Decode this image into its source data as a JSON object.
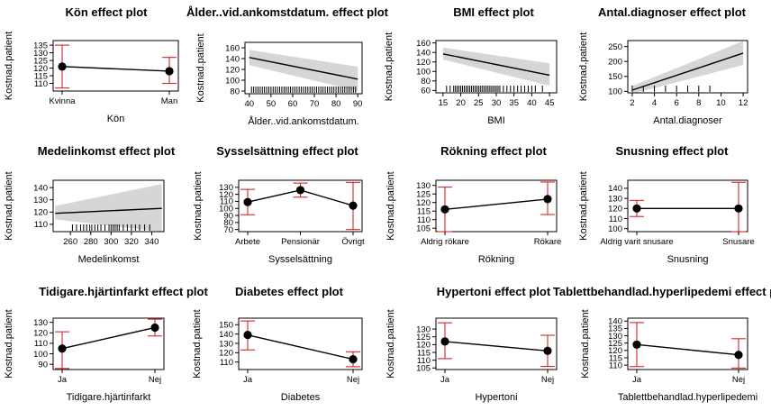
{
  "chart_data": [
    {
      "type": "point",
      "title": "Kön effect plot",
      "xlabel": "Kön",
      "ylabel": "Kostnad.patient",
      "categories": [
        "Kvinna",
        "Man"
      ],
      "values": [
        121,
        118
      ],
      "lower": [
        107,
        110
      ],
      "upper": [
        135,
        127
      ],
      "ylim": [
        105,
        138
      ],
      "yticks": [
        110,
        115,
        120,
        125,
        130,
        135
      ]
    },
    {
      "type": "line",
      "title": "Ålder..vid.ankomstdatum. effect plot",
      "xlabel": "Ålder..vid.ankomstdatum.",
      "ylabel": "Kostnad.patient",
      "x": [
        40,
        90
      ],
      "values": [
        142,
        102
      ],
      "lower": [
        128,
        80
      ],
      "upper": [
        156,
        125
      ],
      "xlim": [
        38,
        92
      ],
      "ylim": [
        75,
        170
      ],
      "xticks": [
        40,
        50,
        60,
        70,
        80,
        90
      ],
      "yticks": [
        80,
        100,
        120,
        140,
        160
      ],
      "rug": [
        41,
        42,
        43,
        44,
        45,
        46,
        47,
        48,
        49,
        50,
        51,
        52,
        53,
        54,
        55,
        56,
        57,
        58,
        59,
        60,
        61,
        62,
        63,
        64,
        65,
        66,
        67,
        68,
        69,
        70,
        71,
        72,
        73,
        74,
        75,
        76,
        77,
        78,
        79,
        80,
        81,
        82,
        83,
        84,
        85,
        86,
        87,
        88,
        89
      ]
    },
    {
      "type": "line",
      "title": "BMI effect plot",
      "xlabel": "BMI",
      "ylabel": "Kostnad.patient",
      "x": [
        15,
        45
      ],
      "values": [
        137,
        92
      ],
      "lower": [
        125,
        70
      ],
      "upper": [
        150,
        117
      ],
      "xlim": [
        13,
        47
      ],
      "ylim": [
        55,
        165
      ],
      "xticks": [
        15,
        20,
        25,
        30,
        35,
        40,
        45
      ],
      "yticks": [
        60,
        80,
        100,
        120,
        140,
        160
      ],
      "rug": [
        16,
        17,
        18,
        18.5,
        19,
        19.5,
        20,
        20.5,
        21,
        21.5,
        22,
        22.5,
        23,
        23.5,
        24,
        24.5,
        25,
        25.5,
        26,
        26.5,
        27,
        27.5,
        28,
        28.5,
        29,
        29.5,
        30,
        30.5,
        31,
        32,
        33,
        34,
        35,
        36,
        37,
        38,
        39,
        40,
        41,
        43
      ]
    },
    {
      "type": "line",
      "title": "Antal.diagnoser effect plot",
      "xlabel": "Antal.diagnoser",
      "ylabel": "Kostnad.patient",
      "x": [
        2,
        12
      ],
      "values": [
        104,
        228
      ],
      "lower": [
        92,
        188
      ],
      "upper": [
        118,
        268
      ],
      "xlim": [
        1.6,
        12.4
      ],
      "ylim": [
        95,
        270
      ],
      "xticks": [
        2,
        4,
        6,
        8,
        10,
        12
      ],
      "yticks": [
        100,
        150,
        200,
        250
      ],
      "rug": [
        2,
        3,
        4,
        5,
        6,
        7,
        8,
        9
      ]
    },
    {
      "type": "line",
      "title": "Medelinkomst effect plot",
      "xlabel": "Medelinkomst",
      "ylabel": "Kostnad.patient",
      "x": [
        245,
        350
      ],
      "values": [
        119,
        123
      ],
      "lower": [
        114,
        104
      ],
      "upper": [
        125,
        143
      ],
      "xlim": [
        243,
        352
      ],
      "ylim": [
        104,
        146
      ],
      "xticks": [
        260,
        280,
        300,
        320,
        340
      ],
      "yticks": [
        110,
        120,
        130,
        140
      ],
      "rug": [
        262,
        266,
        270,
        273,
        276,
        279,
        281,
        284,
        287,
        290,
        294,
        298,
        300,
        302,
        304,
        306,
        308,
        312,
        316,
        320,
        324,
        328,
        333,
        338
      ]
    },
    {
      "type": "point",
      "title": "Sysselsättning effect plot",
      "xlabel": "Sysselsättning",
      "ylabel": "Kostnad.patient",
      "categories": [
        "Arbete",
        "Pensionär",
        "Övrigt"
      ],
      "values": [
        109,
        126,
        104
      ],
      "lower": [
        91,
        116,
        70
      ],
      "upper": [
        127,
        136,
        137
      ],
      "ylim": [
        67,
        140
      ],
      "yticks": [
        70,
        80,
        90,
        100,
        110,
        120,
        130
      ]
    },
    {
      "type": "point",
      "title": "Rökning effect plot",
      "xlabel": "Rökning",
      "ylabel": "Kostnad.patient",
      "categories": [
        "Aldrig rökare",
        "Rökare"
      ],
      "values": [
        116,
        122
      ],
      "lower": [
        103,
        113
      ],
      "upper": [
        129,
        132
      ],
      "ylim": [
        103,
        133
      ],
      "yticks": [
        105,
        110,
        115,
        120,
        125,
        130
      ]
    },
    {
      "type": "point",
      "title": "Snusning effect plot",
      "xlabel": "Snusning",
      "ylabel": "Kostnad.patient",
      "categories": [
        "Aldrig varit snusare",
        "Snusare"
      ],
      "values": [
        120,
        120
      ],
      "lower": [
        112,
        97
      ],
      "upper": [
        128,
        146
      ],
      "ylim": [
        97,
        148
      ],
      "yticks": [
        100,
        110,
        120,
        130,
        140
      ]
    },
    {
      "type": "point",
      "title": "Tidigare.hjärtinfarkt effect plot",
      "xlabel": "Tidigare.hjärtinfarkt",
      "ylabel": "Kostnad.patient",
      "categories": [
        "Ja",
        "Nej"
      ],
      "values": [
        105,
        125
      ],
      "lower": [
        86,
        117
      ],
      "upper": [
        121,
        133
      ],
      "ylim": [
        85,
        134
      ],
      "yticks": [
        90,
        100,
        110,
        120,
        130
      ]
    },
    {
      "type": "point",
      "title": "Diabetes effect plot",
      "xlabel": "Diabetes",
      "ylabel": "Kostnad.patient",
      "categories": [
        "Ja",
        "Nej"
      ],
      "values": [
        139,
        113
      ],
      "lower": [
        123,
        105
      ],
      "upper": [
        154,
        121
      ],
      "ylim": [
        102,
        157
      ],
      "yticks": [
        110,
        120,
        130,
        140,
        150
      ]
    },
    {
      "type": "point",
      "title": "Hypertoni effect plot",
      "xlabel": "Hypertoni",
      "ylabel": "Kostnad.patient",
      "categories": [
        "Ja",
        "Nej"
      ],
      "values": [
        122,
        116
      ],
      "lower": [
        111,
        106
      ],
      "upper": [
        134,
        126
      ],
      "ylim": [
        104,
        137
      ],
      "yticks": [
        105,
        110,
        115,
        120,
        125,
        130
      ]
    },
    {
      "type": "point",
      "title": "Tablettbehandlad.hyperlipedemi effect plot",
      "xlabel": "Tablettbehandlad.hyperlipedemi",
      "ylabel": "Kostnad.patient",
      "categories": [
        "Ja",
        "Nej"
      ],
      "values": [
        124,
        117
      ],
      "lower": [
        109,
        108
      ],
      "upper": [
        139,
        128
      ],
      "ylim": [
        107,
        142
      ],
      "yticks": [
        110,
        115,
        120,
        125,
        130,
        135,
        140
      ]
    }
  ]
}
